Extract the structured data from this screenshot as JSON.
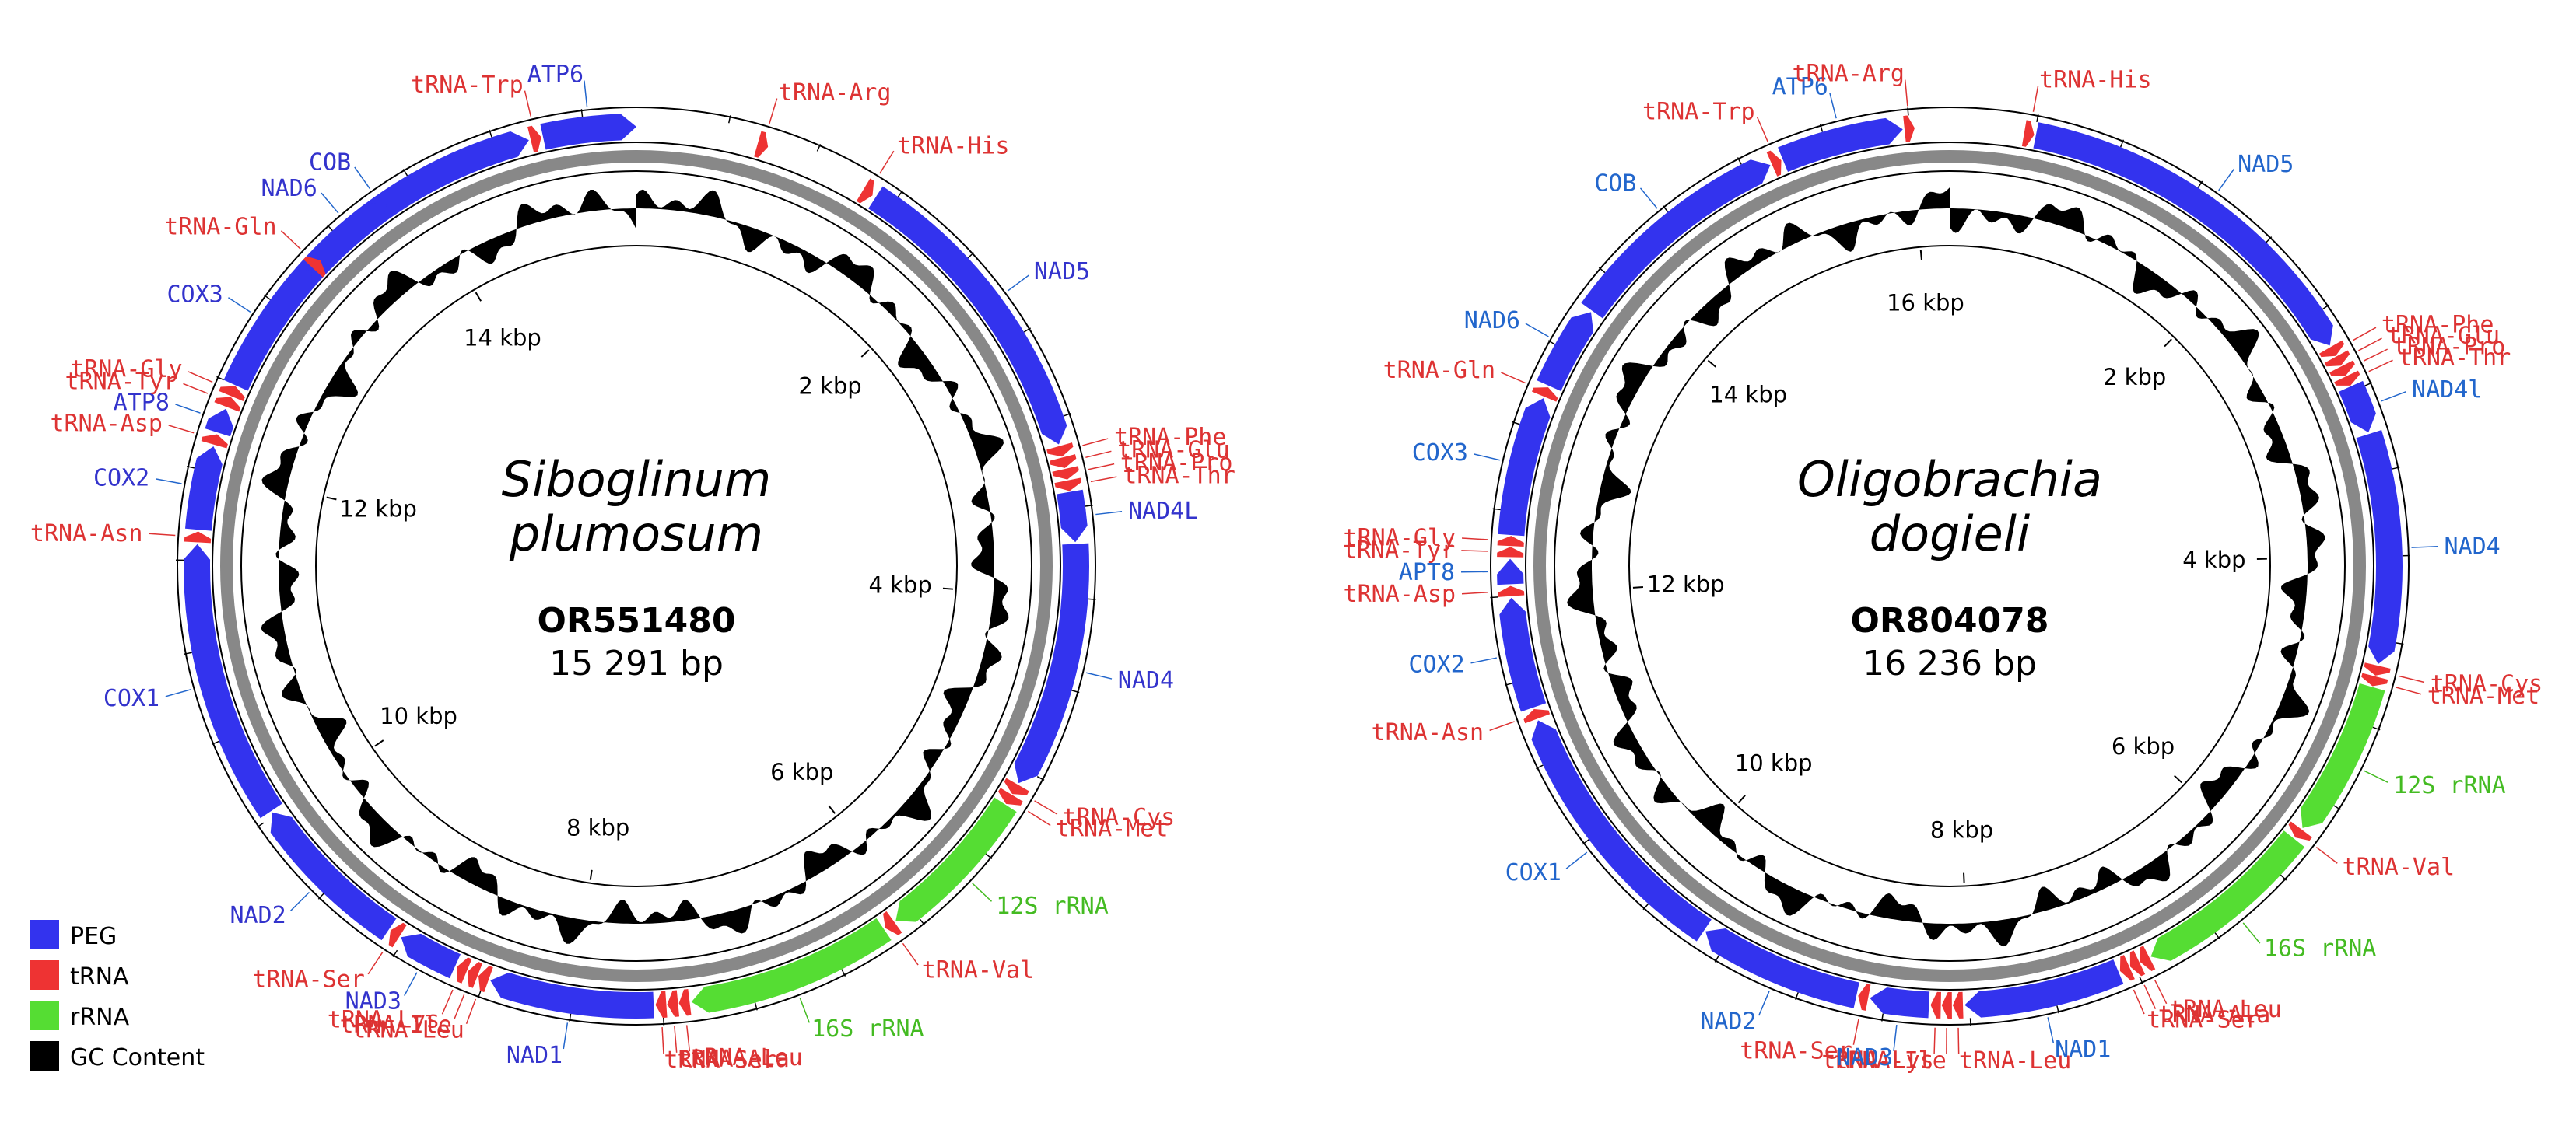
{
  "colors": {
    "peg": "#3333EE",
    "trna": "#EE3333",
    "rrna": "#55DD33",
    "gc": "#000000",
    "backbone": "#888888",
    "peg_label": "#3333CC",
    "peg_label_2": "#2266CC",
    "trna_label": "#DD3333",
    "rrna_label": "#44BB22"
  },
  "legend": [
    {
      "key": "peg",
      "label": "PEG"
    },
    {
      "key": "trna",
      "label": "tRNA"
    },
    {
      "key": "rrna",
      "label": "rRNA"
    },
    {
      "key": "gc",
      "label": "GC Content"
    }
  ],
  "maps": [
    {
      "species_line1": "Siboglinum",
      "species_line2": "plumosum",
      "accession": "OR551480",
      "length_text": "15 291 bp",
      "length_bp": 15291,
      "kbp_ticks": [
        "2 kbp",
        "4 kbp",
        "6 kbp",
        "8 kbp",
        "10 kbp",
        "12 kbp",
        "14 kbp"
      ],
      "features": [
        {
          "name": "COB",
          "type": "peg",
          "start": 12900,
          "end": 14690,
          "strand": 1
        },
        {
          "name": "tRNA-Trp",
          "type": "trna",
          "start": 14700,
          "end": 14760,
          "strand": 1
        },
        {
          "name": "ATP6",
          "type": "peg",
          "start": 14770,
          "end": 15291,
          "strand": 1
        },
        {
          "name": "tRNA-Arg",
          "type": "trna",
          "start": 680,
          "end": 740,
          "strand": 1
        },
        {
          "name": "tRNA-His",
          "type": "trna",
          "start": 1320,
          "end": 1380,
          "strand": 1
        },
        {
          "name": "NAD5",
          "type": "peg",
          "start": 1400,
          "end": 3140,
          "strand": 1
        },
        {
          "name": "tRNA-Phe",
          "type": "trna",
          "start": 3150,
          "end": 3210,
          "strand": 1
        },
        {
          "name": "tRNA-Glu",
          "type": "trna",
          "start": 3215,
          "end": 3275,
          "strand": 1
        },
        {
          "name": "tRNA-Pro",
          "type": "trna",
          "start": 3280,
          "end": 3340,
          "strand": 1
        },
        {
          "name": "tRNA-Thr",
          "type": "trna",
          "start": 3345,
          "end": 3405,
          "strand": 1
        },
        {
          "name": "NAD4L",
          "type": "peg",
          "start": 3410,
          "end": 3690,
          "strand": 1
        },
        {
          "name": "NAD4",
          "type": "peg",
          "start": 3700,
          "end": 5080,
          "strand": 1
        },
        {
          "name": "tRNA-Cys",
          "type": "trna",
          "start": 5090,
          "end": 5150,
          "strand": 1
        },
        {
          "name": "tRNA-Met",
          "type": "trna",
          "start": 5155,
          "end": 5215,
          "strand": 1
        },
        {
          "name": "12S rRNA",
          "type": "rrna",
          "start": 5220,
          "end": 6110,
          "strand": 1
        },
        {
          "name": "tRNA-Val",
          "type": "trna",
          "start": 6120,
          "end": 6180,
          "strand": 1
        },
        {
          "name": "16S rRNA",
          "type": "rrna",
          "start": 6190,
          "end": 7340,
          "strand": 1
        },
        {
          "name": "tRNA-Leu",
          "type": "trna",
          "start": 7350,
          "end": 7410,
          "strand": 1
        },
        {
          "name": "tRNA-Ala",
          "type": "trna",
          "start": 7415,
          "end": 7475,
          "strand": 1
        },
        {
          "name": "tRNA-Ser",
          "type": "trna",
          "start": 7480,
          "end": 7540,
          "strand": 1
        },
        {
          "name": "NAD1",
          "type": "peg",
          "start": 7550,
          "end": 8470,
          "strand": 1
        },
        {
          "name": "tRNA-Leu",
          "type": "trna",
          "start": 8480,
          "end": 8540,
          "strand": 1
        },
        {
          "name": "tRNA-Ile",
          "type": "trna",
          "start": 8545,
          "end": 8605,
          "strand": 1
        },
        {
          "name": "tRNA-Lys",
          "type": "trna",
          "start": 8610,
          "end": 8670,
          "strand": 1
        },
        {
          "name": "NAD3",
          "type": "peg",
          "start": 8680,
          "end": 9020,
          "strand": 1
        },
        {
          "name": "tRNA-Ser",
          "type": "trna",
          "start": 9030,
          "end": 9090,
          "strand": 1
        },
        {
          "name": "NAD2",
          "type": "peg",
          "start": 9100,
          "end": 10020,
          "strand": 1
        },
        {
          "name": "COX1",
          "type": "peg",
          "start": 10030,
          "end": 11590,
          "strand": 1
        },
        {
          "name": "tRNA-Asn",
          "type": "trna",
          "start": 11600,
          "end": 11660,
          "strand": 1
        },
        {
          "name": "COX2",
          "type": "peg",
          "start": 11670,
          "end": 12140,
          "strand": 1
        },
        {
          "name": "tRNA-Asp",
          "type": "trna",
          "start": 12150,
          "end": 12210,
          "strand": 1
        },
        {
          "name": "ATP8",
          "type": "peg",
          "start": 12220,
          "end": 12360,
          "strand": 1
        },
        {
          "name": "tRNA-Tyr",
          "type": "trna",
          "start": 12370,
          "end": 12430,
          "strand": 1
        },
        {
          "name": "tRNA-Gly",
          "type": "trna",
          "start": 12435,
          "end": 12495,
          "strand": 1
        },
        {
          "name": "COX3",
          "type": "peg",
          "start": 12500,
          "end": 13270,
          "strand": 1
        },
        {
          "name": "tRNA-Gln",
          "type": "trna",
          "start": 13280,
          "end": 13340,
          "strand": 1
        },
        {
          "name": "NAD6",
          "type": "peg",
          "start": 13350,
          "end": 13820,
          "strand": 1
        }
      ]
    },
    {
      "species_line1": "Oligobrachia",
      "species_line2": "dogieli",
      "accession": "OR804078",
      "length_text": "16 236 bp",
      "length_bp": 16236,
      "kbp_ticks": [
        "2 kbp",
        "4 kbp",
        "6 kbp",
        "8 kbp",
        "10 kbp",
        "12 kbp",
        "14 kbp",
        "16 kbp"
      ],
      "features": [
        {
          "name": "COB",
          "type": "peg",
          "start": 13780,
          "end": 15150,
          "strand": 1
        },
        {
          "name": "tRNA-Trp",
          "type": "trna",
          "start": 15160,
          "end": 15220,
          "strand": 1
        },
        {
          "name": "ATP6",
          "type": "peg",
          "start": 15230,
          "end": 15960,
          "strand": 1
        },
        {
          "name": "tRNA-Arg",
          "type": "trna",
          "start": 15970,
          "end": 16030,
          "strand": 1
        },
        {
          "name": "tRNA-His",
          "type": "trna",
          "start": 440,
          "end": 500,
          "strand": 1
        },
        {
          "name": "NAD5",
          "type": "peg",
          "start": 510,
          "end": 2700,
          "strand": 1
        },
        {
          "name": "tRNA-Phe",
          "type": "trna",
          "start": 2710,
          "end": 2770,
          "strand": 1
        },
        {
          "name": "tRNA-Glu",
          "type": "trna",
          "start": 2775,
          "end": 2835,
          "strand": 1
        },
        {
          "name": "tRNA-Pro",
          "type": "trna",
          "start": 2840,
          "end": 2900,
          "strand": 1
        },
        {
          "name": "tRNA-Thr",
          "type": "trna",
          "start": 2905,
          "end": 2965,
          "strand": 1
        },
        {
          "name": "NAD4l",
          "type": "peg",
          "start": 2970,
          "end": 3260,
          "strand": 1
        },
        {
          "name": "NAD4",
          "type": "peg",
          "start": 3270,
          "end": 4640,
          "strand": 1
        },
        {
          "name": "tRNA-Cys",
          "type": "trna",
          "start": 4650,
          "end": 4710,
          "strand": 1
        },
        {
          "name": "tRNA-Met",
          "type": "trna",
          "start": 4715,
          "end": 4775,
          "strand": 1
        },
        {
          "name": "12S rRNA",
          "type": "rrna",
          "start": 4780,
          "end": 5710,
          "strand": 1
        },
        {
          "name": "tRNA-Val",
          "type": "trna",
          "start": 5720,
          "end": 5780,
          "strand": 1
        },
        {
          "name": "16S rRNA",
          "type": "rrna",
          "start": 5790,
          "end": 6890,
          "strand": 1
        },
        {
          "name": "tRNA-Leu",
          "type": "trna",
          "start": 6900,
          "end": 6960,
          "strand": 1
        },
        {
          "name": "tRNA-Ala",
          "type": "trna",
          "start": 6965,
          "end": 7025,
          "strand": 1
        },
        {
          "name": "tRNA-Ser",
          "type": "trna",
          "start": 7030,
          "end": 7090,
          "strand": 1
        },
        {
          "name": "NAD1",
          "type": "peg",
          "start": 7100,
          "end": 8030,
          "strand": 1
        },
        {
          "name": "tRNA-Leu",
          "type": "trna",
          "start": 8040,
          "end": 8100,
          "strand": 1
        },
        {
          "name": "tRNA-Ile",
          "type": "trna",
          "start": 8105,
          "end": 8165,
          "strand": 1
        },
        {
          "name": "tRNA-Lys",
          "type": "trna",
          "start": 8170,
          "end": 8230,
          "strand": 1
        },
        {
          "name": "NAD3",
          "type": "peg",
          "start": 8240,
          "end": 8590,
          "strand": 1
        },
        {
          "name": "tRNA-Ser",
          "type": "trna",
          "start": 8600,
          "end": 8660,
          "strand": 1
        },
        {
          "name": "NAD2",
          "type": "peg",
          "start": 8670,
          "end": 9640,
          "strand": 1
        },
        {
          "name": "COX1",
          "type": "peg",
          "start": 9650,
          "end": 11250,
          "strand": 1
        },
        {
          "name": "tRNA-Asn",
          "type": "trna",
          "start": 11260,
          "end": 11320,
          "strand": 1
        },
        {
          "name": "COX2",
          "type": "peg",
          "start": 11330,
          "end": 11990,
          "strand": 1
        },
        {
          "name": "tRNA-Asp",
          "type": "trna",
          "start": 12000,
          "end": 12060,
          "strand": 1
        },
        {
          "name": "APT8",
          "type": "peg",
          "start": 12070,
          "end": 12220,
          "strand": 1
        },
        {
          "name": "tRNA-Tyr",
          "type": "trna",
          "start": 12230,
          "end": 12290,
          "strand": 1
        },
        {
          "name": "tRNA-Gly",
          "type": "trna",
          "start": 12295,
          "end": 12355,
          "strand": 1
        },
        {
          "name": "COX3",
          "type": "peg",
          "start": 12360,
          "end": 13190,
          "strand": 1
        },
        {
          "name": "tRNA-Gln",
          "type": "trna",
          "start": 13200,
          "end": 13260,
          "strand": 1
        },
        {
          "name": "NAD6",
          "type": "peg",
          "start": 13270,
          "end": 13770,
          "strand": 1
        }
      ]
    }
  ]
}
